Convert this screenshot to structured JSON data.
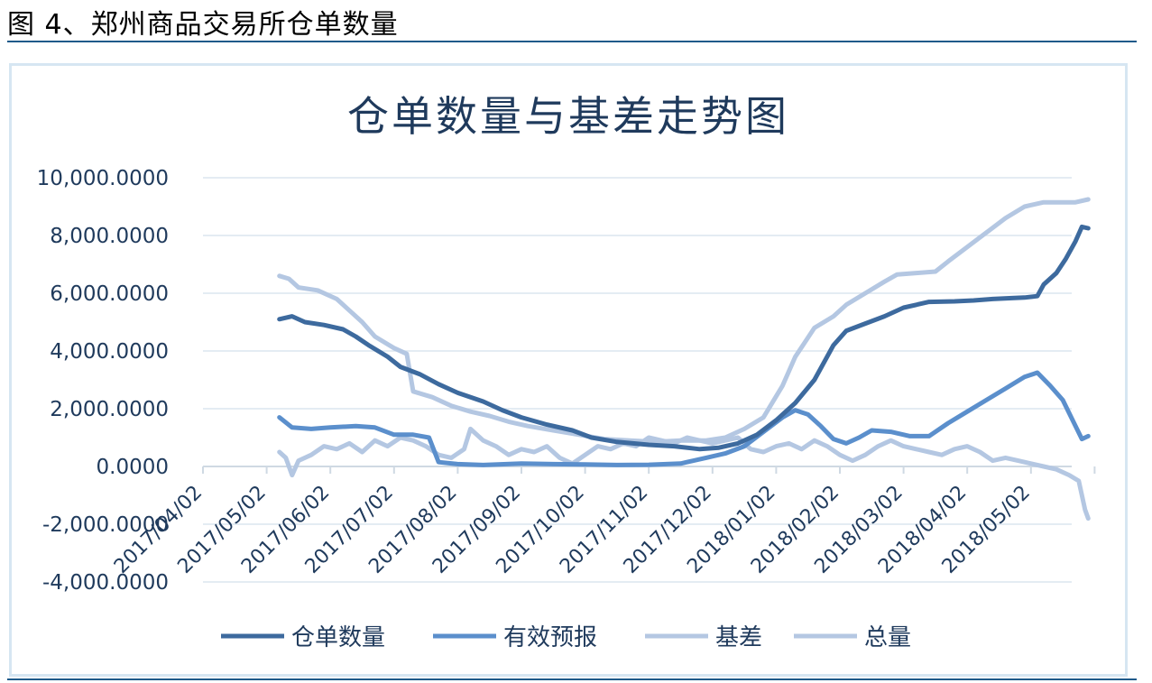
{
  "caption": "图 4、郑州商品交易所仓单数量",
  "chart_data": {
    "type": "line",
    "title": "仓单数量与基差走势图",
    "ylim": [
      -4000,
      10000
    ],
    "yticks": [
      -4000,
      -2000,
      0,
      2000,
      4000,
      6000,
      8000,
      10000
    ],
    "ytick_labels": [
      "-4,000.0000",
      "-2,000.0000",
      "0.0000",
      "2,000.0000",
      "4,000.0000",
      "6,000.0000",
      "8,000.0000",
      "10,000.0000"
    ],
    "xticks": [
      "2017/04/02",
      "2017/05/02",
      "2017/06/02",
      "2017/07/02",
      "2017/08/02",
      "2017/09/02",
      "2017/10/02",
      "2017/11/02",
      "2017/12/02",
      "2018/01/02",
      "2018/02/02",
      "2018/03/02",
      "2018/04/02",
      "2018/05/02"
    ],
    "xlim": [
      0,
      13.9
    ],
    "grid": true,
    "legend": "bottom",
    "series": [
      {
        "name": "仓单数量",
        "color": "#3d6a9e",
        "width": 5,
        "points": [
          [
            1.2,
            5100
          ],
          [
            1.4,
            5200
          ],
          [
            1.6,
            5000
          ],
          [
            1.9,
            4900
          ],
          [
            2.2,
            4750
          ],
          [
            2.4,
            4500
          ],
          [
            2.6,
            4200
          ],
          [
            2.9,
            3800
          ],
          [
            3.1,
            3450
          ],
          [
            3.4,
            3200
          ],
          [
            3.7,
            2850
          ],
          [
            4.0,
            2550
          ],
          [
            4.4,
            2250
          ],
          [
            4.7,
            1950
          ],
          [
            5.0,
            1700
          ],
          [
            5.4,
            1450
          ],
          [
            5.8,
            1250
          ],
          [
            6.1,
            1000
          ],
          [
            6.5,
            850
          ],
          [
            7.0,
            750
          ],
          [
            7.4,
            700
          ],
          [
            7.8,
            600
          ],
          [
            8.1,
            650
          ],
          [
            8.4,
            800
          ],
          [
            8.7,
            1100
          ],
          [
            9.0,
            1600
          ],
          [
            9.3,
            2200
          ],
          [
            9.6,
            3000
          ],
          [
            9.9,
            4200
          ],
          [
            10.1,
            4700
          ],
          [
            10.4,
            4950
          ],
          [
            10.7,
            5200
          ],
          [
            11.0,
            5500
          ],
          [
            11.4,
            5700
          ],
          [
            11.8,
            5720
          ],
          [
            12.1,
            5750
          ],
          [
            12.4,
            5800
          ],
          [
            12.7,
            5830
          ],
          [
            12.9,
            5850
          ],
          [
            13.1,
            5900
          ],
          [
            13.2,
            6300
          ],
          [
            13.4,
            6700
          ],
          [
            13.55,
            7200
          ],
          [
            13.7,
            7800
          ],
          [
            13.8,
            8300
          ],
          [
            13.9,
            8250
          ]
        ]
      },
      {
        "name": "有效预报",
        "color": "#5b8fcc",
        "width": 5,
        "points": [
          [
            1.2,
            1700
          ],
          [
            1.4,
            1350
          ],
          [
            1.7,
            1300
          ],
          [
            2.0,
            1350
          ],
          [
            2.4,
            1400
          ],
          [
            2.7,
            1350
          ],
          [
            3.0,
            1100
          ],
          [
            3.3,
            1100
          ],
          [
            3.55,
            1000
          ],
          [
            3.7,
            150
          ],
          [
            4.0,
            80
          ],
          [
            4.4,
            50
          ],
          [
            5.0,
            100
          ],
          [
            5.5,
            80
          ],
          [
            6.0,
            70
          ],
          [
            6.5,
            50
          ],
          [
            7.0,
            60
          ],
          [
            7.5,
            100
          ],
          [
            7.9,
            300
          ],
          [
            8.2,
            450
          ],
          [
            8.5,
            700
          ],
          [
            8.8,
            1200
          ],
          [
            9.1,
            1700
          ],
          [
            9.3,
            1950
          ],
          [
            9.5,
            1800
          ],
          [
            9.7,
            1400
          ],
          [
            9.9,
            950
          ],
          [
            10.1,
            800
          ],
          [
            10.3,
            1000
          ],
          [
            10.5,
            1250
          ],
          [
            10.8,
            1200
          ],
          [
            11.1,
            1050
          ],
          [
            11.4,
            1050
          ],
          [
            11.7,
            1500
          ],
          [
            12.0,
            1900
          ],
          [
            12.3,
            2300
          ],
          [
            12.6,
            2700
          ],
          [
            12.9,
            3100
          ],
          [
            13.1,
            3250
          ],
          [
            13.3,
            2800
          ],
          [
            13.5,
            2300
          ],
          [
            13.7,
            1400
          ],
          [
            13.8,
            950
          ],
          [
            13.9,
            1050
          ]
        ]
      },
      {
        "name": "基差",
        "color": "#b4c7e2",
        "width": 5,
        "points": [
          [
            1.2,
            500
          ],
          [
            1.3,
            300
          ],
          [
            1.4,
            -300
          ],
          [
            1.5,
            200
          ],
          [
            1.7,
            400
          ],
          [
            1.9,
            700
          ],
          [
            2.1,
            600
          ],
          [
            2.3,
            800
          ],
          [
            2.5,
            500
          ],
          [
            2.7,
            900
          ],
          [
            2.9,
            700
          ],
          [
            3.1,
            1000
          ],
          [
            3.3,
            900
          ],
          [
            3.5,
            700
          ],
          [
            3.7,
            400
          ],
          [
            3.9,
            300
          ],
          [
            4.1,
            600
          ],
          [
            4.2,
            1300
          ],
          [
            4.4,
            900
          ],
          [
            4.6,
            700
          ],
          [
            4.8,
            400
          ],
          [
            5.0,
            600
          ],
          [
            5.2,
            500
          ],
          [
            5.4,
            700
          ],
          [
            5.6,
            300
          ],
          [
            5.8,
            100
          ],
          [
            6.0,
            400
          ],
          [
            6.2,
            700
          ],
          [
            6.4,
            600
          ],
          [
            6.6,
            800
          ],
          [
            6.8,
            700
          ],
          [
            7.0,
            1000
          ],
          [
            7.2,
            900
          ],
          [
            7.4,
            800
          ],
          [
            7.6,
            1000
          ],
          [
            7.8,
            900
          ],
          [
            8.0,
            800
          ],
          [
            8.2,
            900
          ],
          [
            8.4,
            1000
          ],
          [
            8.6,
            600
          ],
          [
            8.8,
            500
          ],
          [
            9.0,
            700
          ],
          [
            9.2,
            800
          ],
          [
            9.4,
            600
          ],
          [
            9.6,
            900
          ],
          [
            9.8,
            700
          ],
          [
            10.0,
            400
          ],
          [
            10.2,
            200
          ],
          [
            10.4,
            400
          ],
          [
            10.6,
            700
          ],
          [
            10.8,
            900
          ],
          [
            11.0,
            700
          ],
          [
            11.2,
            600
          ],
          [
            11.4,
            500
          ],
          [
            11.6,
            400
          ],
          [
            11.8,
            600
          ],
          [
            12.0,
            700
          ],
          [
            12.2,
            500
          ],
          [
            12.4,
            200
          ],
          [
            12.6,
            300
          ],
          [
            12.8,
            200
          ],
          [
            13.0,
            100
          ],
          [
            13.2,
            0
          ],
          [
            13.4,
            -100
          ],
          [
            13.6,
            -300
          ],
          [
            13.75,
            -500
          ],
          [
            13.85,
            -1500
          ],
          [
            13.9,
            -1800
          ]
        ]
      },
      {
        "name": "总量",
        "color": "#b4c7e2",
        "width": 5,
        "points": [
          [
            1.2,
            6600
          ],
          [
            1.35,
            6500
          ],
          [
            1.5,
            6200
          ],
          [
            1.8,
            6100
          ],
          [
            2.1,
            5800
          ],
          [
            2.3,
            5400
          ],
          [
            2.5,
            5000
          ],
          [
            2.7,
            4500
          ],
          [
            3.0,
            4100
          ],
          [
            3.2,
            3900
          ],
          [
            3.3,
            2600
          ],
          [
            3.6,
            2400
          ],
          [
            3.9,
            2100
          ],
          [
            4.2,
            1900
          ],
          [
            4.5,
            1750
          ],
          [
            4.8,
            1550
          ],
          [
            5.1,
            1400
          ],
          [
            5.5,
            1250
          ],
          [
            5.9,
            1100
          ],
          [
            6.3,
            950
          ],
          [
            6.7,
            900
          ],
          [
            7.1,
            850
          ],
          [
            7.5,
            900
          ],
          [
            7.9,
            900
          ],
          [
            8.2,
            1000
          ],
          [
            8.5,
            1300
          ],
          [
            8.8,
            1700
          ],
          [
            9.1,
            2800
          ],
          [
            9.3,
            3800
          ],
          [
            9.6,
            4800
          ],
          [
            9.9,
            5200
          ],
          [
            10.1,
            5600
          ],
          [
            10.4,
            6000
          ],
          [
            10.7,
            6400
          ],
          [
            10.9,
            6650
          ],
          [
            11.2,
            6700
          ],
          [
            11.5,
            6750
          ],
          [
            11.7,
            7100
          ],
          [
            12.0,
            7600
          ],
          [
            12.3,
            8100
          ],
          [
            12.6,
            8600
          ],
          [
            12.9,
            9000
          ],
          [
            13.2,
            9150
          ],
          [
            13.5,
            9150
          ],
          [
            13.7,
            9150
          ],
          [
            13.9,
            9250
          ]
        ]
      }
    ]
  }
}
